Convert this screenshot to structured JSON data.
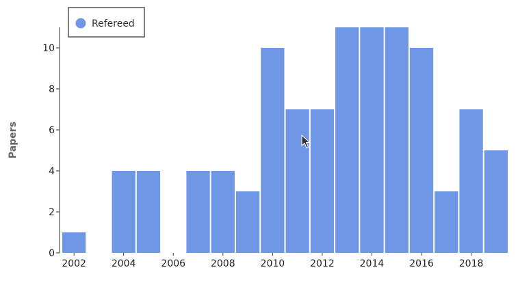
{
  "chart_data": {
    "type": "bar",
    "ylabel": "Papers",
    "xlabel": "",
    "title": "",
    "x": [
      2002,
      2003,
      2004,
      2005,
      2006,
      2007,
      2008,
      2009,
      2010,
      2011,
      2012,
      2013,
      2014,
      2015,
      2016,
      2017,
      2018,
      2019
    ],
    "series": [
      {
        "name": "Refereed",
        "color": "#6f97e6",
        "values": [
          1,
          0,
          4,
          4,
          0,
          4,
          4,
          3,
          10,
          7,
          7,
          11,
          11,
          11,
          10,
          3,
          7,
          5
        ]
      }
    ],
    "xticks": [
      "2002",
      "2004",
      "2006",
      "2008",
      "2010",
      "2012",
      "2014",
      "2016",
      "2018"
    ],
    "yticks": [
      "0",
      "2",
      "4",
      "6",
      "8",
      "10"
    ],
    "ylim": [
      0,
      11
    ],
    "grid": false,
    "legend_position": "top-left"
  }
}
